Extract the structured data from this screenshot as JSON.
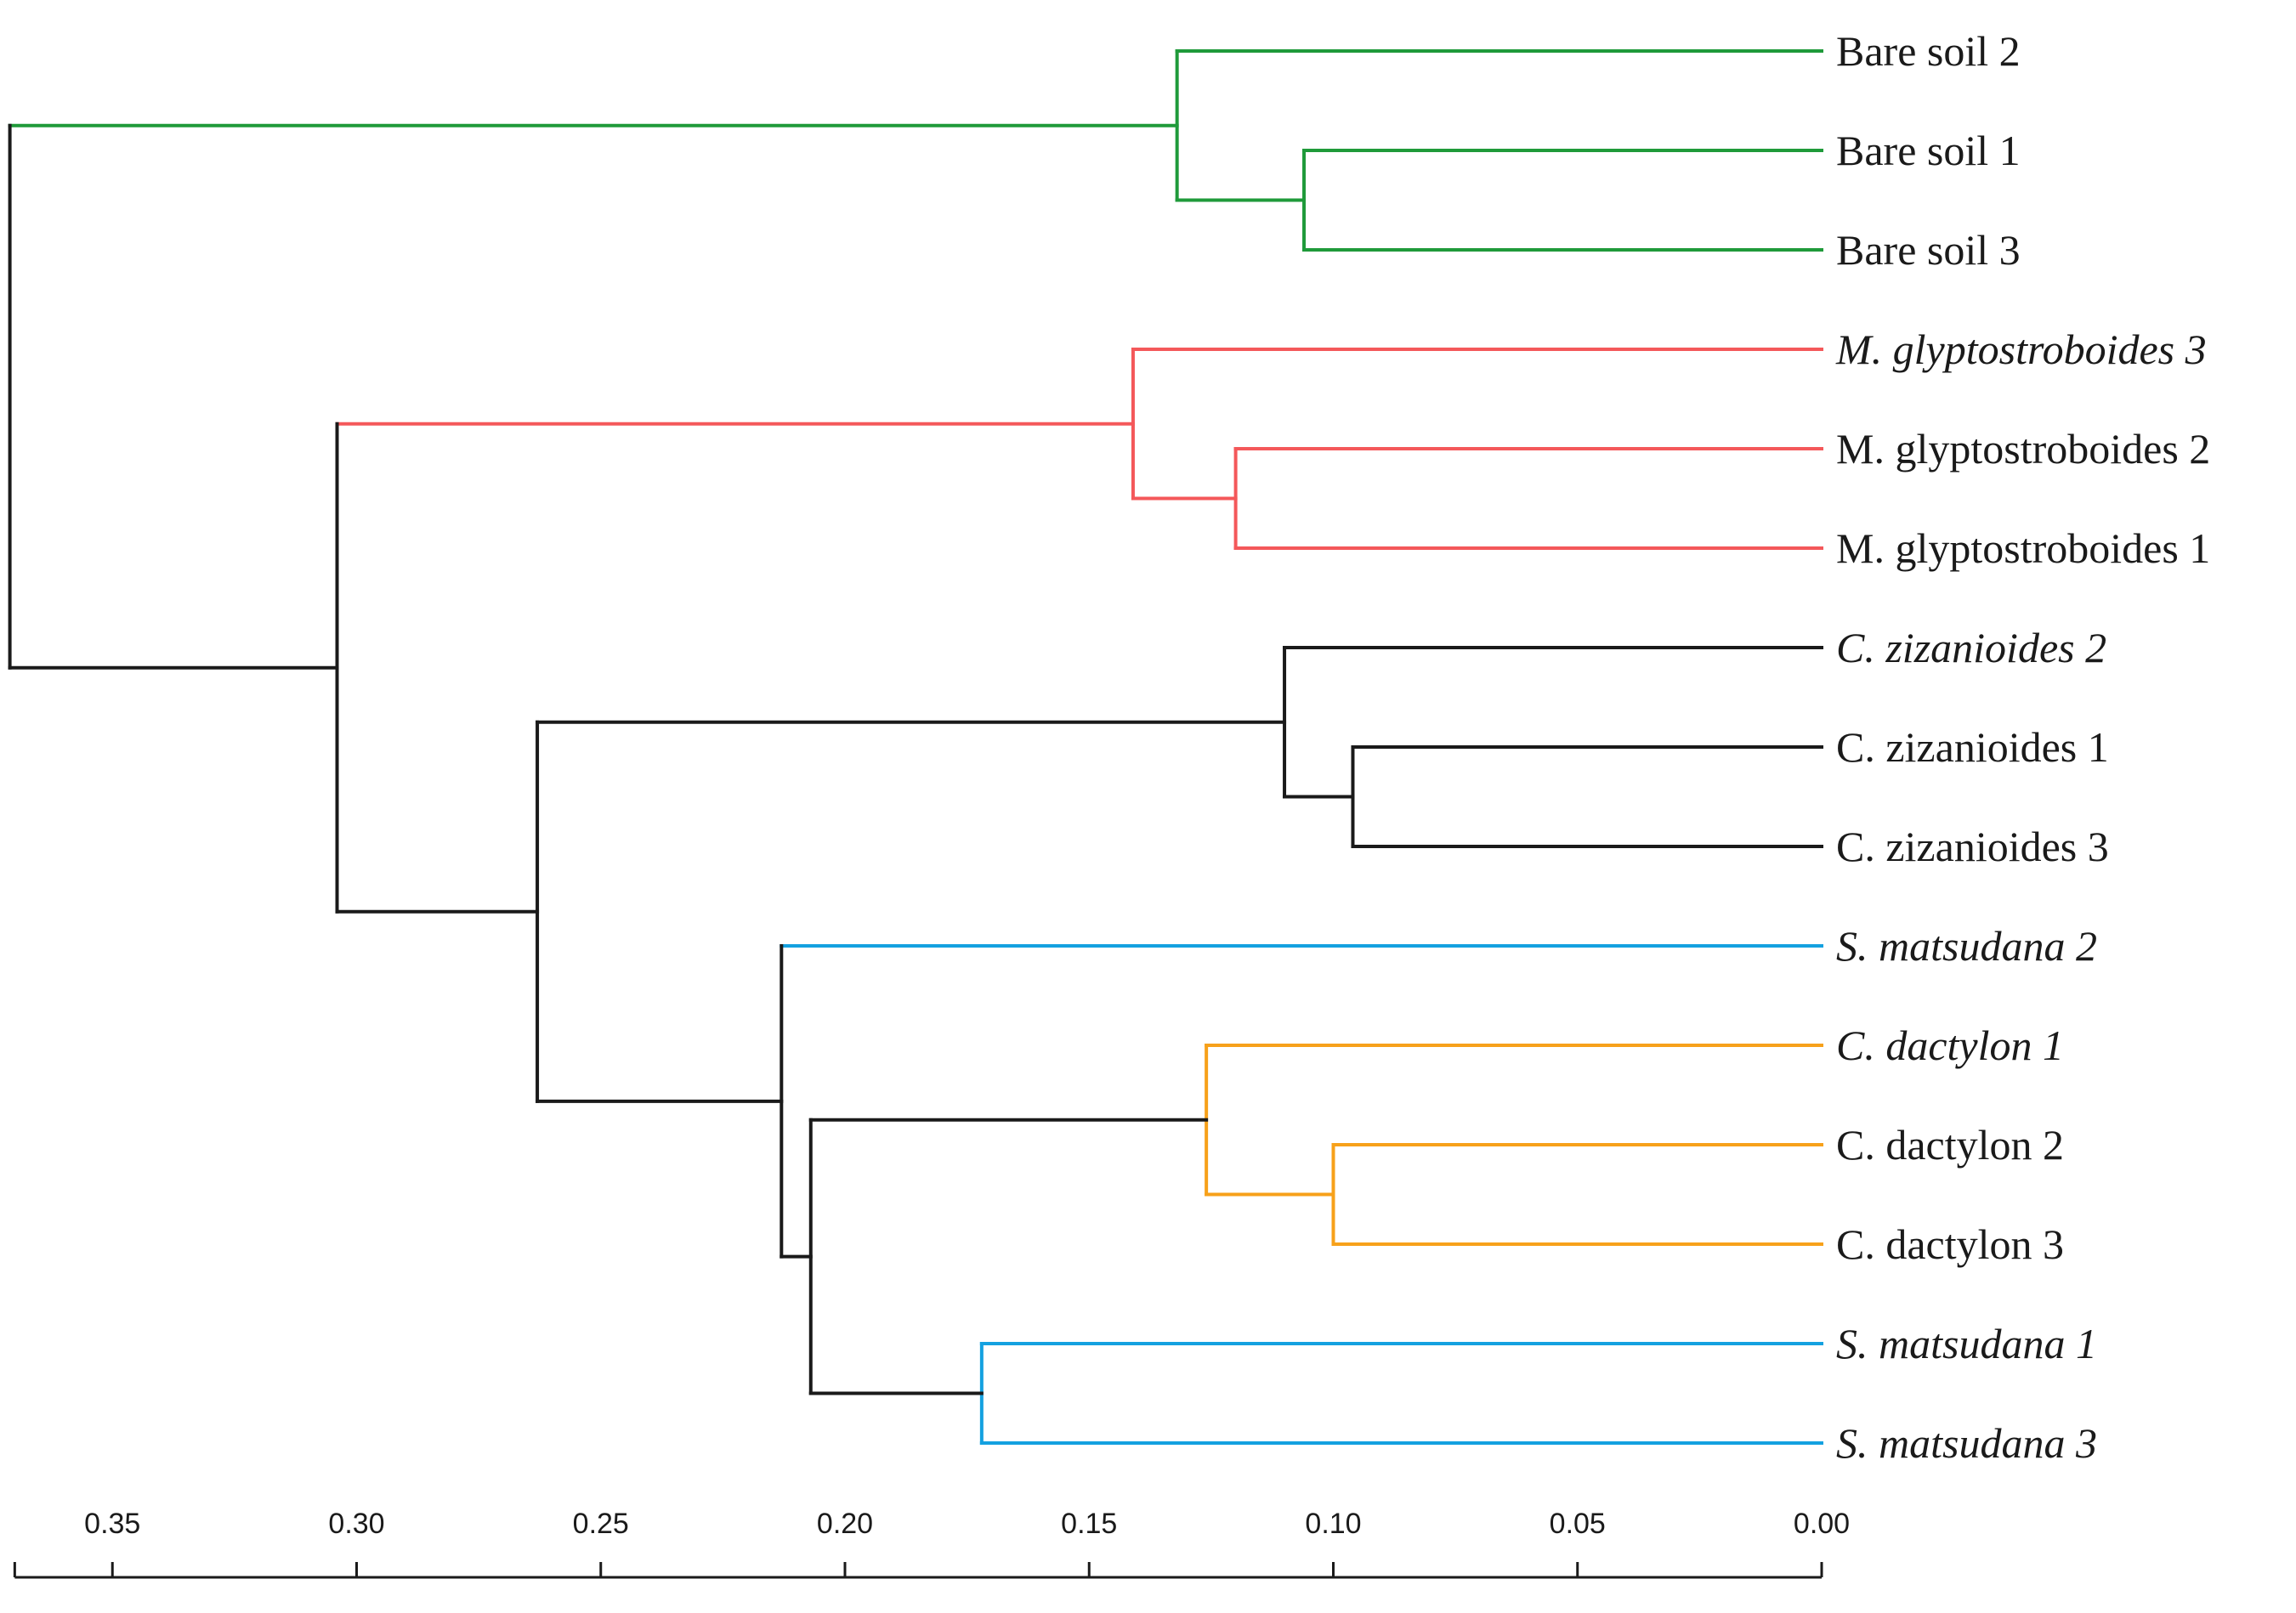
{
  "chart_data": {
    "type": "dendrogram",
    "title": "",
    "xlabel": "",
    "ylabel": "",
    "xlim": [
      0.37,
      0.0
    ],
    "x_axis_ticks": [
      "0.35",
      "0.30",
      "0.25",
      "0.20",
      "0.15",
      "0.10",
      "0.05",
      "0.00"
    ],
    "x_axis_tick_values": [
      0.35,
      0.3,
      0.25,
      0.2,
      0.15,
      0.1,
      0.05,
      0.0
    ],
    "colors": {
      "bare_soil": "#1f9a3a",
      "metasequoia": "#f4585a",
      "root_black": "#1a1a1a",
      "salix": "#14a1e0",
      "cynodon": "#f7a11a"
    },
    "leaves": [
      {
        "label": "Bare soil 2",
        "italic": false
      },
      {
        "label": "Bare soil 1",
        "italic": false
      },
      {
        "label": "Bare soil 3",
        "italic": false
      },
      {
        "label": "M. glyptostroboides 3",
        "italic": true
      },
      {
        "label": "M. glyptostroboides 2",
        "italic": false
      },
      {
        "label": "M. glyptostroboides 1",
        "italic": false
      },
      {
        "label": "C. zizanioides 2",
        "italic": true
      },
      {
        "label": "C. zizanioides 1",
        "italic": false
      },
      {
        "label": "C. zizanioides 3",
        "italic": false
      },
      {
        "label": "S. matsudana 2",
        "italic": true
      },
      {
        "label": "C. dactylon 1",
        "italic": true
      },
      {
        "label": "C. dactylon 2",
        "italic": false
      },
      {
        "label": "C. dactylon 3",
        "italic": false
      },
      {
        "label": "S. matsudana 1",
        "italic": true
      },
      {
        "label": "S. matsudana 3",
        "italic": true
      }
    ],
    "merges": [
      {
        "id": "n1",
        "left": 1,
        "right": 2,
        "height": 0.106,
        "color": "bare_soil"
      },
      {
        "id": "n2",
        "left": 0,
        "right": "n1",
        "height": 0.132,
        "color": "bare_soil"
      },
      {
        "id": "n3",
        "left": 4,
        "right": 5,
        "height": 0.12,
        "color": "metasequoia"
      },
      {
        "id": "n4",
        "left": 3,
        "right": "n3",
        "height": 0.141,
        "color": "metasequoia"
      },
      {
        "id": "n5",
        "left": 7,
        "right": 8,
        "height": 0.096,
        "color": "root_black"
      },
      {
        "id": "n6",
        "left": 6,
        "right": "n5",
        "height": 0.11,
        "color": "root_black"
      },
      {
        "id": "n7",
        "left": 11,
        "right": 12,
        "height": 0.1,
        "color": "cynodon"
      },
      {
        "id": "n8",
        "left": 10,
        "right": "n7",
        "height": 0.126,
        "color": "cynodon"
      },
      {
        "id": "n9",
        "left": 13,
        "right": 14,
        "height": 0.172,
        "color": "salix"
      },
      {
        "id": "n10",
        "left": "n8",
        "right": "n9",
        "height": 0.207,
        "color": "root_black"
      },
      {
        "id": "n11",
        "left": 9,
        "right": "n10",
        "height": 0.213,
        "color": "root_black",
        "left_color": "salix"
      },
      {
        "id": "n12",
        "left": "n6",
        "right": "n11",
        "height": 0.263,
        "color": "root_black"
      },
      {
        "id": "n13",
        "left": "n4",
        "right": "n12",
        "height": 0.304,
        "color": "root_black",
        "left_color": "metasequoia"
      },
      {
        "id": "n14",
        "left": "n2",
        "right": "n13",
        "height": 0.371,
        "color": "root_black",
        "left_color": "bare_soil"
      }
    ]
  }
}
